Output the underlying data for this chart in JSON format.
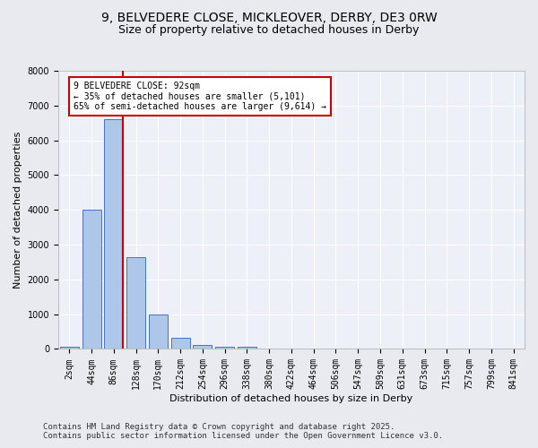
{
  "title_line1": "9, BELVEDERE CLOSE, MICKLEOVER, DERBY, DE3 0RW",
  "title_line2": "Size of property relative to detached houses in Derby",
  "xlabel": "Distribution of detached houses by size in Derby",
  "ylabel": "Number of detached properties",
  "bin_labels": [
    "2sqm",
    "44sqm",
    "86sqm",
    "128sqm",
    "170sqm",
    "212sqm",
    "254sqm",
    "296sqm",
    "338sqm",
    "380sqm",
    "422sqm",
    "464sqm",
    "506sqm",
    "547sqm",
    "589sqm",
    "631sqm",
    "673sqm",
    "715sqm",
    "757sqm",
    "799sqm",
    "841sqm"
  ],
  "bar_heights": [
    60,
    4000,
    6620,
    2650,
    980,
    310,
    120,
    75,
    65,
    0,
    0,
    0,
    0,
    0,
    0,
    0,
    0,
    0,
    0,
    0,
    0
  ],
  "bar_color": "#aec6e8",
  "bar_edge_color": "#4472c4",
  "vline_color": "#cc0000",
  "annotation_text": "9 BELVEDERE CLOSE: 92sqm\n← 35% of detached houses are smaller (5,101)\n65% of semi-detached houses are larger (9,614) →",
  "annotation_box_color": "#cc0000",
  "ylim": [
    0,
    8000
  ],
  "yticks": [
    0,
    1000,
    2000,
    3000,
    4000,
    5000,
    6000,
    7000,
    8000
  ],
  "bg_color": "#e8eaf0",
  "plot_bg_color": "#eef0f8",
  "footer_line1": "Contains HM Land Registry data © Crown copyright and database right 2025.",
  "footer_line2": "Contains public sector information licensed under the Open Government Licence v3.0.",
  "title_fontsize": 10,
  "subtitle_fontsize": 9,
  "axis_label_fontsize": 8,
  "tick_fontsize": 7,
  "footer_fontsize": 6.5
}
